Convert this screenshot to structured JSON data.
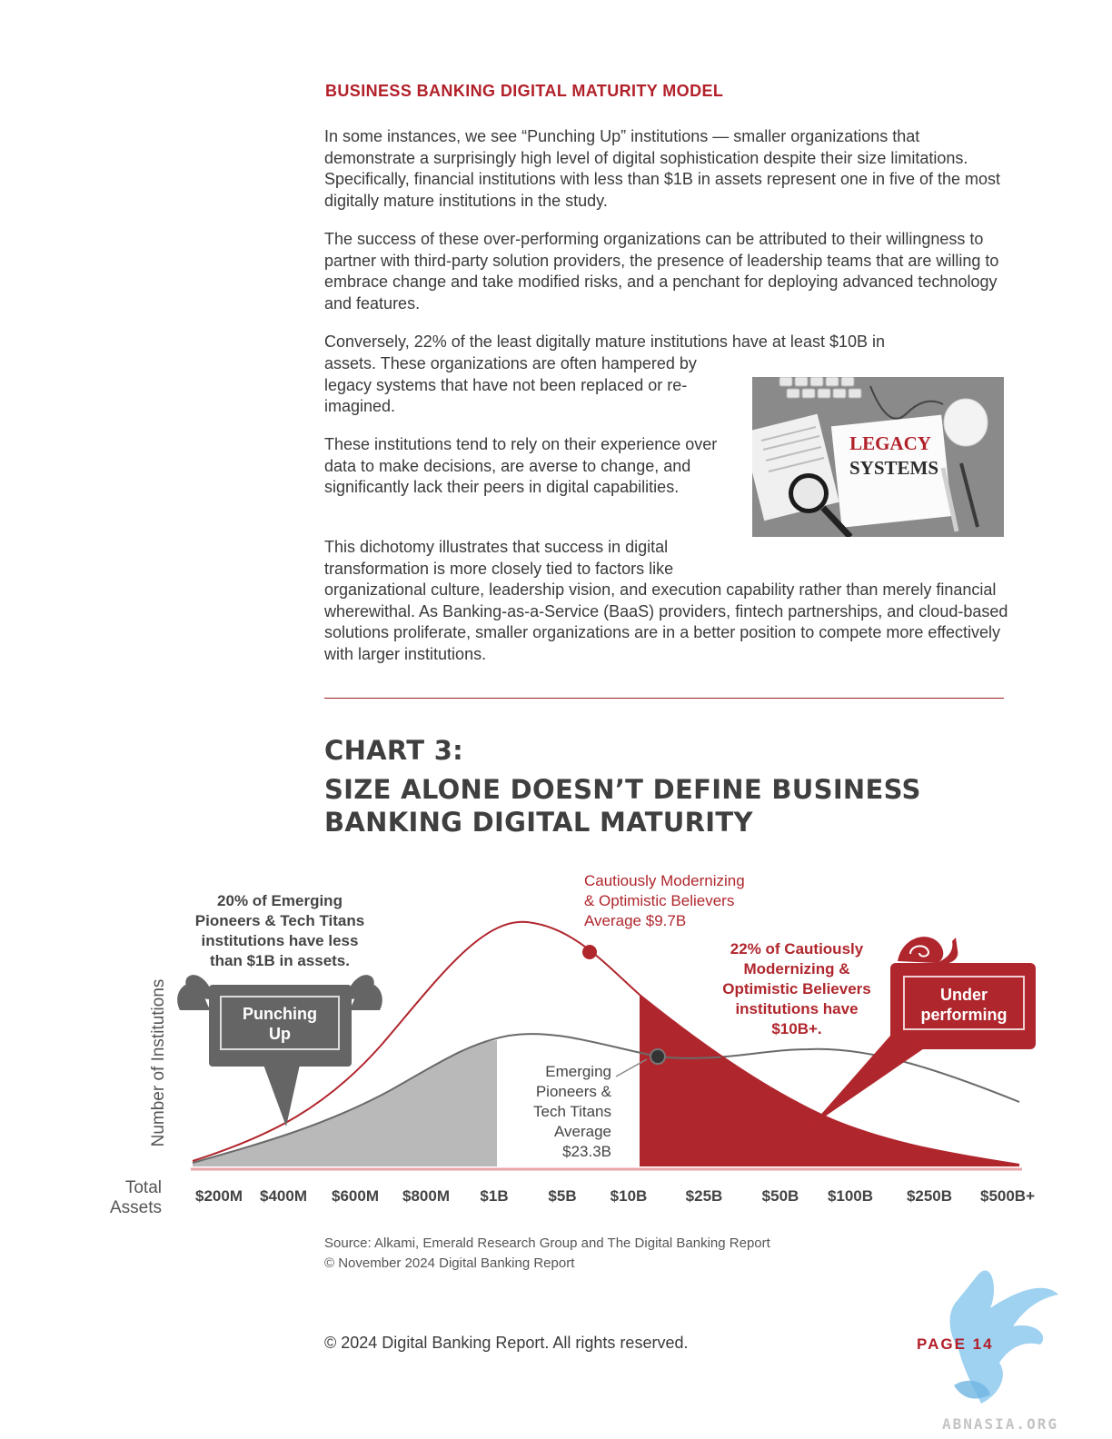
{
  "header": {
    "section_label": "BUSINESS BANKING DIGITAL MATURITY MODEL"
  },
  "body": {
    "p1": "In some instances, we see “Punching Up” institutions — smaller organizations that demonstrate a surprisingly high level of digital sophistication despite their size limitations. Specifically, financial institutions with less than $1B in assets represent one in five of the most digitally mature institutions in the study.",
    "p2": "The success of these over-performing organizations can be attributed to their willingness to partner with third-party solution providers, the presence of leadership teams that are willing to embrace change and take modified risks, and a penchant for deploying advanced technology and features.",
    "p3_line1": "Conversely, 22% of the least digitally mature institutions have at least $10B in",
    "p3_rest": "assets. These organizations are often hampered by legacy systems that have not been replaced or re-imagined.",
    "p4": "These institutions tend to rely on their experience over data to make decisions, are averse to change, and significantly lack their peers in digital capabilities.",
    "p5_start": "This dichotomy illustrates that success in digital transformation is more closely tied to factors like",
    "p5_rest": "organizational culture, leadership vision, and execution capability rather than merely financial wherewithal. As Banking-as-a-Service (BaaS) providers, fintech partnerships, and cloud-based solutions proliferate, smaller organizations are in a better position to compete more effectively with larger institutions."
  },
  "image": {
    "sign_line1": "LEGACY",
    "sign_line2": "SYSTEMS"
  },
  "chart": {
    "title_line1": "CHART 3:",
    "title_line2": "SIZE ALONE DOESN’T DEFINE BUSINESS",
    "title_line3": "BANKING DIGITAL MATURITY",
    "source": "Source: Alkami, Emerald Research Group and The Digital Banking Report",
    "copyright": "© November 2024 Digital Banking Report"
  },
  "chart_data": {
    "type": "area",
    "ylabel": "Number of Institutions",
    "xlabel_line1": "Total",
    "xlabel_line2": "Assets",
    "categories": [
      "$200M",
      "$400M",
      "$600M",
      "$800M",
      "$1B",
      "$5B",
      "$10B",
      "$25B",
      "$50B",
      "$100B",
      "$250B",
      "$500B+"
    ],
    "annotations": {
      "left_callout": [
        "20% of Emerging",
        "Pioneers & Tech Titans",
        "institutions have less",
        "than $1B in assets."
      ],
      "punching_up": [
        "Punching",
        "Up"
      ],
      "red_average": [
        "Cautiously Modernizing",
        "& Optimistic Believers",
        "Average $9.7B"
      ],
      "right_callout": [
        "22% of Cautiously",
        "Modernizing &",
        "Optimistic Believers",
        "institutions have",
        "$10B+."
      ],
      "underperforming": [
        "Under",
        "performing"
      ],
      "gray_average": [
        "Emerging",
        "Pioneers &",
        "Tech Titans",
        "Average",
        "$23.3B"
      ]
    },
    "colors": {
      "red": "#b0262d",
      "gray": "#6a6a6a",
      "shade_gray": "#b9b9b9"
    }
  },
  "footer": {
    "copyright": "© 2024 Digital Banking Report. All rights reserved.",
    "page": "PAGE 14"
  },
  "watermark": {
    "text": "ABNASIA.ORG"
  }
}
